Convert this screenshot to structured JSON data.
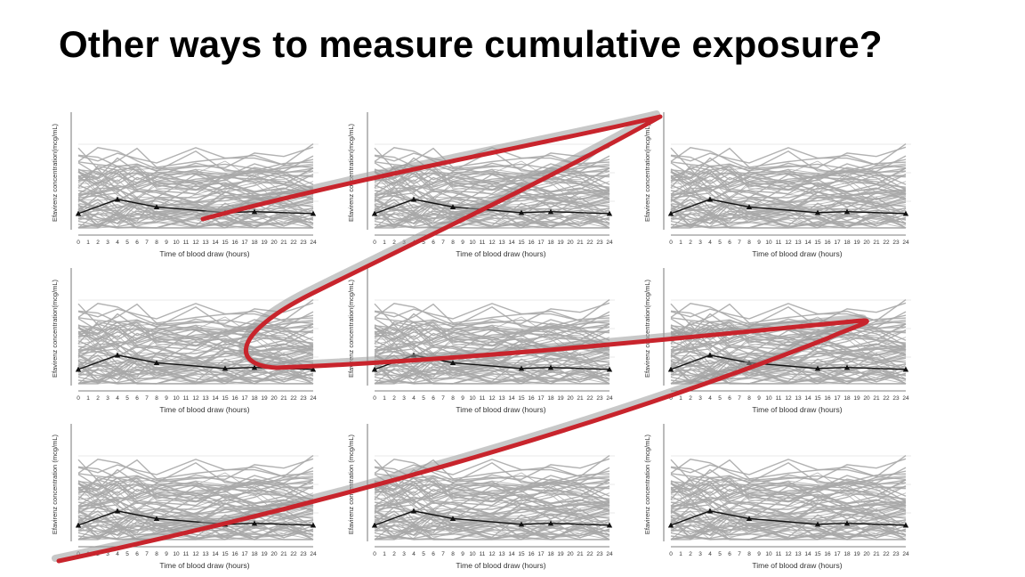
{
  "slide": {
    "title": "Other ways to measure cumulative exposure?"
  },
  "style": {
    "background": "#ffffff",
    "individual_line_color": "#a8a8a8",
    "median_line_color": "#111111",
    "annotation_color": "#c8242c",
    "annotation_shadow": "#999999"
  },
  "chart_data": [
    {
      "type": "line",
      "grid_position": "row1-col1",
      "xlabel": "Time of blood draw (hours)",
      "ylabel": "Efavirenz concentration(mcg/mL)",
      "x_ticks": [
        "0",
        "1",
        "2",
        "3",
        "4",
        "5",
        "6",
        "7",
        "8",
        "9",
        "10",
        "11",
        "12",
        "13",
        "14",
        "15",
        "16",
        "17",
        "18",
        "19",
        "20",
        "21",
        "22",
        "23",
        "24"
      ],
      "xlim": [
        0,
        24
      ],
      "median_series": {
        "x": [
          0,
          4,
          8,
          15,
          18,
          24
        ],
        "y": [
          1.7,
          3.2,
          2.4,
          1.8,
          1.9,
          1.7
        ]
      }
    },
    {
      "type": "line",
      "grid_position": "row1-col2",
      "xlabel": "Time of blood draw (hours)",
      "ylabel": "Efavirenz concentration(mcg/mL)",
      "x_ticks": [
        "0",
        "1",
        "2",
        "3",
        "4",
        "5",
        "6",
        "7",
        "8",
        "9",
        "10",
        "11",
        "12",
        "13",
        "14",
        "15",
        "16",
        "17",
        "18",
        "19",
        "20",
        "21",
        "22",
        "23",
        "24"
      ],
      "xlim": [
        0,
        24
      ],
      "median_series": {
        "x": [
          0,
          4,
          8,
          15,
          18,
          24
        ],
        "y": [
          1.7,
          3.2,
          2.4,
          1.8,
          1.9,
          1.7
        ]
      }
    },
    {
      "type": "line",
      "grid_position": "row1-col3",
      "xlabel": "Time of blood draw (hours)",
      "ylabel": "Efavirenz concentration(mcg/mL)",
      "x_ticks": [
        "0",
        "1",
        "2",
        "3",
        "4",
        "5",
        "6",
        "7",
        "8",
        "9",
        "10",
        "11",
        "12",
        "13",
        "14",
        "15",
        "16",
        "17",
        "18",
        "19",
        "20",
        "21",
        "22",
        "23",
        "24"
      ],
      "xlim": [
        0,
        24
      ],
      "median_series": {
        "x": [
          0,
          4,
          8,
          15,
          18,
          24
        ],
        "y": [
          1.7,
          3.2,
          2.4,
          1.8,
          1.9,
          1.7
        ]
      }
    },
    {
      "type": "line",
      "grid_position": "row2-col1",
      "xlabel": "Time of blood draw (hours)",
      "ylabel": "Efavirenz concentration(mcg/mL)",
      "x_ticks": [
        "0",
        "1",
        "2",
        "3",
        "4",
        "5",
        "6",
        "7",
        "8",
        "9",
        "10",
        "11",
        "12",
        "13",
        "14",
        "15",
        "16",
        "17",
        "18",
        "19",
        "20",
        "21",
        "22",
        "23",
        "24"
      ],
      "xlim": [
        0,
        24
      ],
      "median_series": {
        "x": [
          0,
          4,
          8,
          15,
          18,
          24
        ],
        "y": [
          1.7,
          3.2,
          2.4,
          1.8,
          1.9,
          1.7
        ]
      }
    },
    {
      "type": "line",
      "grid_position": "row2-col2",
      "xlabel": "Time of blood draw (hours)",
      "ylabel": "Efavirenz concentration(mcg/mL)",
      "x_ticks": [
        "0",
        "1",
        "2",
        "3",
        "4",
        "5",
        "6",
        "7",
        "8",
        "9",
        "10",
        "11",
        "12",
        "13",
        "14",
        "15",
        "16",
        "17",
        "18",
        "19",
        "20",
        "21",
        "22",
        "23",
        "24"
      ],
      "xlim": [
        0,
        24
      ],
      "median_series": {
        "x": [
          0,
          4,
          8,
          15,
          18,
          24
        ],
        "y": [
          1.7,
          3.2,
          2.4,
          1.8,
          1.9,
          1.7
        ]
      }
    },
    {
      "type": "line",
      "grid_position": "row2-col3",
      "xlabel": "Time of blood draw (hours)",
      "ylabel": "Efavirenz concentration(mcg/mL)",
      "x_ticks": [
        "0",
        "1",
        "2",
        "3",
        "4",
        "5",
        "6",
        "7",
        "8",
        "9",
        "10",
        "11",
        "12",
        "13",
        "14",
        "15",
        "16",
        "17",
        "18",
        "19",
        "20",
        "21",
        "22",
        "23",
        "24"
      ],
      "xlim": [
        0,
        24
      ],
      "median_series": {
        "x": [
          0,
          4,
          8,
          15,
          18,
          24
        ],
        "y": [
          1.7,
          3.2,
          2.4,
          1.8,
          1.9,
          1.7
        ]
      }
    },
    {
      "type": "line",
      "grid_position": "row3-col1",
      "xlabel": "Time of blood draw (hours)",
      "ylabel": "Efavirenz concentration (mcg/mL)",
      "x_ticks": [
        "0",
        "1",
        "2",
        "3",
        "4",
        "5",
        "6",
        "7",
        "8",
        "9",
        "10",
        "11",
        "12",
        "13",
        "14",
        "15",
        "16",
        "17",
        "18",
        "19",
        "20",
        "21",
        "22",
        "23",
        "24"
      ],
      "xlim": [
        0,
        24
      ],
      "median_series": {
        "x": [
          0,
          4,
          8,
          15,
          18,
          24
        ],
        "y": [
          1.7,
          3.2,
          2.4,
          1.8,
          1.9,
          1.7
        ]
      }
    },
    {
      "type": "line",
      "grid_position": "row3-col2",
      "xlabel": "Time of blood draw (hours)",
      "ylabel": "Efavirenz concentration (mcg/mL)",
      "x_ticks": [
        "0",
        "1",
        "2",
        "3",
        "4",
        "5",
        "6",
        "7",
        "8",
        "9",
        "10",
        "11",
        "12",
        "13",
        "14",
        "15",
        "16",
        "17",
        "18",
        "19",
        "20",
        "21",
        "22",
        "23",
        "24"
      ],
      "xlim": [
        0,
        24
      ],
      "median_series": {
        "x": [
          0,
          4,
          8,
          15,
          18,
          24
        ],
        "y": [
          1.7,
          3.2,
          2.4,
          1.8,
          1.9,
          1.7
        ]
      }
    },
    {
      "type": "line",
      "grid_position": "row3-col3",
      "xlabel": "Time of blood draw (hours)",
      "ylabel": "Efavirenz concentration (mcg/mL)",
      "x_ticks": [
        "0",
        "1",
        "2",
        "3",
        "4",
        "5",
        "6",
        "7",
        "8",
        "9",
        "10",
        "11",
        "12",
        "13",
        "14",
        "15",
        "16",
        "17",
        "18",
        "19",
        "20",
        "21",
        "22",
        "23",
        "24"
      ],
      "xlim": [
        0,
        24
      ],
      "median_series": {
        "x": [
          0,
          4,
          8,
          15,
          18,
          24
        ],
        "y": [
          1.7,
          3.2,
          2.4,
          1.8,
          1.9,
          1.7
        ]
      }
    }
  ]
}
